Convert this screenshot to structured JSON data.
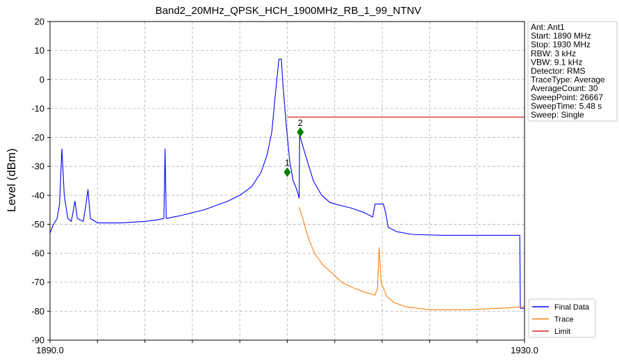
{
  "chart_data": {
    "type": "line",
    "title": "Band2_20MHz_QPSK_HCH_1900MHz_RB_1_99_NTNV",
    "xlabel": "",
    "ylabel": "Level (dBm)",
    "xlim": [
      1890,
      1930
    ],
    "ylim": [
      -90,
      20
    ],
    "x_tick_labels": [
      {
        "value": 1890,
        "label": "1890.0"
      },
      {
        "value": 1930,
        "label": "1930.0"
      }
    ],
    "x_minor_ticks": [
      1894,
      1898,
      1902,
      1906,
      1910,
      1914,
      1918,
      1922,
      1926
    ],
    "y_ticks": [
      20,
      10,
      0,
      -10,
      -20,
      -30,
      -40,
      -50,
      -60,
      -70,
      -80,
      -90
    ],
    "grid": true,
    "legend_position": "bottom-right",
    "info_box": [
      "Ant: Ant1",
      "Start: 1890 MHz",
      "Stop: 1930 MHz",
      "RBW: 3 kHz",
      "VBW: 9.1 kHz",
      "Detector: RMS",
      "TraceType: Average",
      "AverageCount: 30",
      "SweepPoint: 26667",
      "SweepTime: 5.48 s",
      "Sweep: Single"
    ],
    "series": [
      {
        "name": "Final Data",
        "color": "#0000ff",
        "points": [
          [
            1890,
            -53
          ],
          [
            1890.3,
            -50
          ],
          [
            1890.6,
            -48
          ],
          [
            1890.8,
            -43
          ],
          [
            1891.0,
            -24
          ],
          [
            1891.2,
            -40
          ],
          [
            1891.5,
            -48
          ],
          [
            1891.8,
            -49
          ],
          [
            1892.1,
            -42
          ],
          [
            1892.3,
            -48
          ],
          [
            1892.8,
            -49
          ],
          [
            1893.0,
            -44
          ],
          [
            1893.2,
            -38
          ],
          [
            1893.4,
            -48
          ],
          [
            1894,
            -49.5
          ],
          [
            1896,
            -49.5
          ],
          [
            1898,
            -49
          ],
          [
            1899.0,
            -48.5
          ],
          [
            1899.6,
            -48
          ],
          [
            1899.7,
            -24
          ],
          [
            1899.8,
            -48
          ],
          [
            1901,
            -47
          ],
          [
            1903,
            -45
          ],
          [
            1905,
            -42
          ],
          [
            1906,
            -40
          ],
          [
            1907,
            -37
          ],
          [
            1907.8,
            -32
          ],
          [
            1908.3,
            -26
          ],
          [
            1908.7,
            -18
          ],
          [
            1909.0,
            -5
          ],
          [
            1909.3,
            7
          ],
          [
            1909.5,
            7
          ],
          [
            1909.6,
            0
          ],
          [
            1909.9,
            -15
          ],
          [
            1910.2,
            -28
          ],
          [
            1910.5,
            -35
          ],
          [
            1910.8,
            -38
          ],
          [
            1911.0,
            -41
          ],
          [
            1911.05,
            -18
          ],
          [
            1911.1,
            -20
          ],
          [
            1911.6,
            -27
          ],
          [
            1912.2,
            -35
          ],
          [
            1912.9,
            -40
          ],
          [
            1913.6,
            -42.5
          ],
          [
            1914.5,
            -43.5
          ],
          [
            1915.5,
            -44.5
          ],
          [
            1916.5,
            -46
          ],
          [
            1917.2,
            -47.5
          ],
          [
            1917.4,
            -43
          ],
          [
            1918.1,
            -43
          ],
          [
            1918.3,
            -46
          ],
          [
            1918.5,
            -51
          ],
          [
            1919.2,
            -52.5
          ],
          [
            1920.5,
            -53.5
          ],
          [
            1923,
            -53.8
          ],
          [
            1926,
            -53.8
          ],
          [
            1929.6,
            -53.8
          ],
          [
            1929.65,
            -79
          ],
          [
            1930,
            -79
          ]
        ]
      },
      {
        "name": "Trace",
        "color": "#ff7f0e",
        "points": [
          [
            1911.0,
            -44
          ],
          [
            1911.3,
            -48
          ],
          [
            1911.8,
            -55
          ],
          [
            1912.3,
            -60
          ],
          [
            1913.0,
            -64
          ],
          [
            1913.8,
            -67
          ],
          [
            1914.6,
            -70
          ],
          [
            1915.6,
            -72
          ],
          [
            1916.6,
            -73.5
          ],
          [
            1917.4,
            -74.5
          ],
          [
            1917.6,
            -72
          ],
          [
            1917.75,
            -58
          ],
          [
            1917.9,
            -70
          ],
          [
            1918.4,
            -75
          ],
          [
            1919.0,
            -77
          ],
          [
            1920.0,
            -78.5
          ],
          [
            1922,
            -79.5
          ],
          [
            1925,
            -79.5
          ],
          [
            1928,
            -79
          ],
          [
            1930,
            -78.5
          ]
        ]
      },
      {
        "name": "Limit",
        "color": "#d62728",
        "points": [
          [
            1910,
            -13
          ],
          [
            1930,
            -13
          ]
        ]
      }
    ],
    "markers": [
      {
        "label": "1",
        "x": 1910.0,
        "y": -32.0,
        "color": "#008000"
      },
      {
        "label": "2",
        "x": 1911.1,
        "y": -18.2,
        "color": "#008000"
      }
    ]
  }
}
